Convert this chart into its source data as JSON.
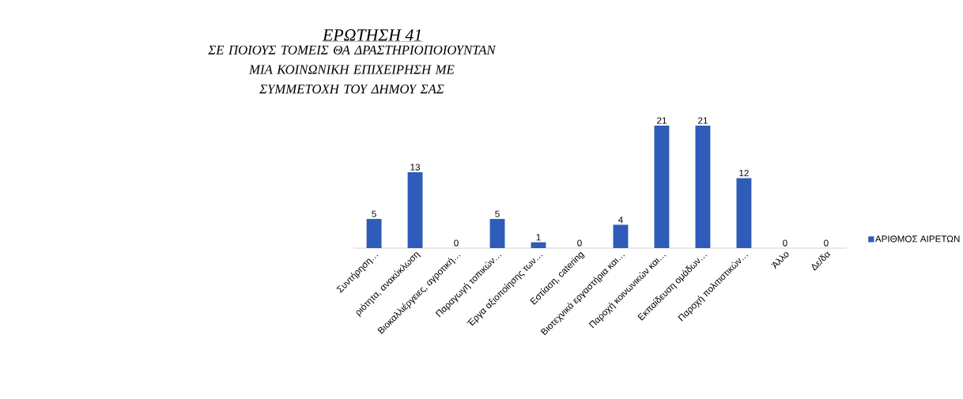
{
  "chart_data": {
    "type": "bar",
    "title": "ΕΡΩΤΗΣΗ 41",
    "subtitle": "ΣΕ ΠΟΙΟΥΣ ΤΟΜΕΙΣ ΘΑ ΔΡΑΣΤΗΡΙΟΠΟΙΟΥΝΤΑΝ ΜΙΑ ΚΟΙΝΩΝΙΚΗ ΕΠΙΧΕΙΡΗΣΗ ΜΕ ΣΥΜΜΕΤΟΧΗ ΤΟΥ ΔΗΜΟΥ ΣΑΣ",
    "categories": [
      "Συντήρηση…",
      "ριότητα, ανακύκλωση",
      "Βιοκαλλιέργειες, αγροτική…",
      "Παραγωγή τοπικών…",
      "Έργα αξιοποίησης των…",
      "Εστίαση, catering",
      "Βιοτεχνικά εργαστήρια και…",
      "Παροχή κοινωνικών και…",
      "Εκπαίδευση ομάδων…",
      "Παροχή πολιτιστικών…",
      "Άλλο",
      "Δε/δα"
    ],
    "series": [
      {
        "name": "ΑΡΙΘΜΟΣ ΑΙΡΕΤΩΝ",
        "color": "#2e5cb8",
        "values": [
          5,
          13,
          0,
          5,
          1,
          0,
          4,
          21,
          21,
          12,
          0,
          0
        ]
      }
    ],
    "data_labels": true,
    "legend": "right"
  }
}
